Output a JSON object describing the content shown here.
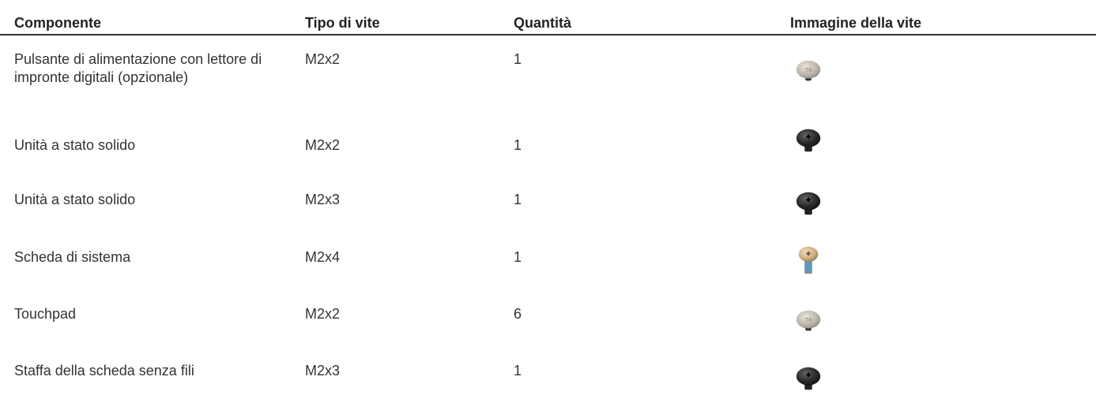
{
  "table": {
    "header": [
      "Componente",
      "Tipo di vite",
      "Quantità",
      "Immagine della vite"
    ],
    "rows": [
      [
        "Pulsante di alimentazione con lettore di impronte digitali (opzionale)",
        "M2x2",
        1
      ],
      [
        "Unità a stato solido",
        "M2x2",
        1
      ],
      [
        "Unità a stato solido",
        "M2x3",
        1
      ],
      [
        "Scheda di sistema",
        "M2x4",
        1
      ],
      [
        "Touchpad",
        "M2x2",
        6
      ],
      [
        "Staffa della scheda senza fili",
        "M2x3",
        1
      ]
    ]
  }
}
